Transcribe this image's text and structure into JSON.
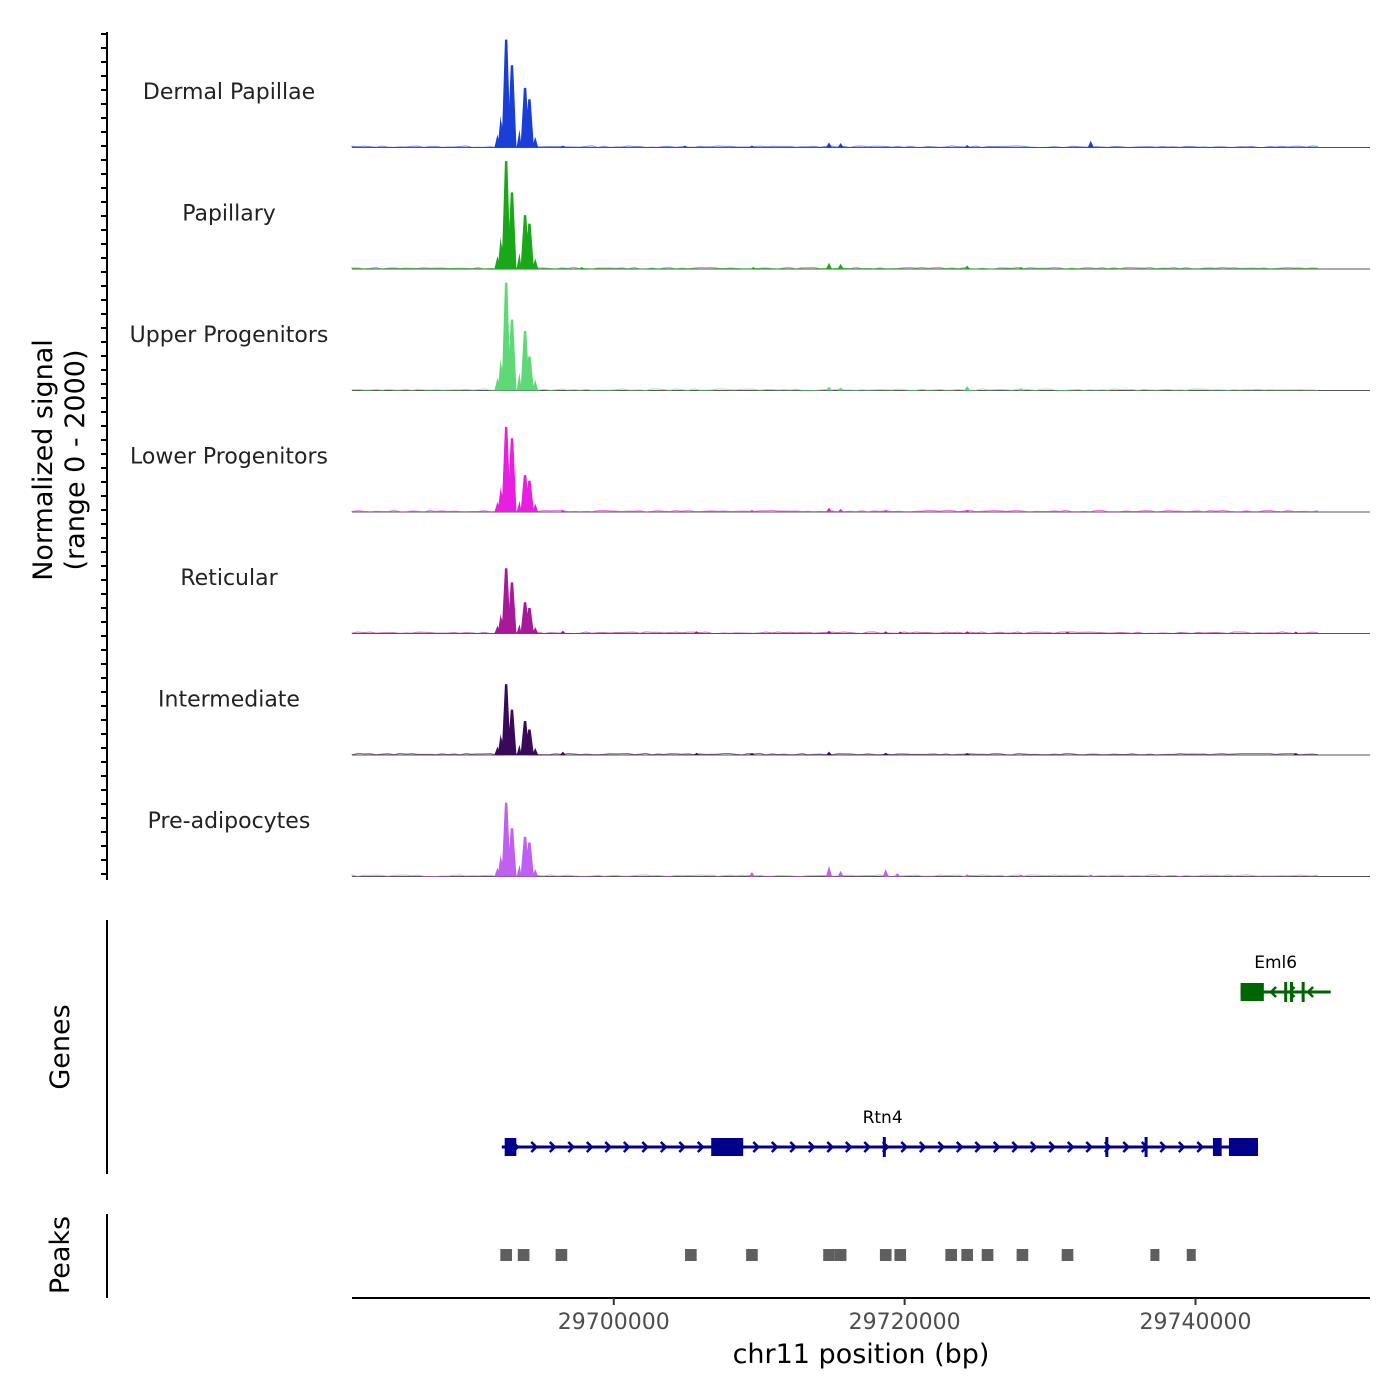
{
  "chart_data": {
    "type": "area",
    "title": "",
    "ylabel_line1": "Normalized signal",
    "ylabel_line2": "(range 0 - 2000)",
    "genes_label": "Genes",
    "peaks_label": "Peaks",
    "xlabel": "chr11 position (bp)",
    "chromosome": "chr11",
    "xlim": [
      29682000,
      29752000
    ],
    "ylim": [
      0,
      2000
    ],
    "x_ticks": [
      29700000,
      29720000,
      29740000
    ],
    "x_tick_labels": [
      "29700000",
      "29720000",
      "29740000"
    ],
    "tracks": [
      {
        "name": "Dermal Papillae",
        "color": "#1a3fd6",
        "main_peaks": [
          [
            29692600,
            1900
          ],
          [
            29693000,
            1450
          ],
          [
            29693900,
            1050
          ],
          [
            29694200,
            850
          ]
        ],
        "minor_peaks": [
          [
            29714800,
            90
          ],
          [
            29715600,
            80
          ],
          [
            29724300,
            45
          ],
          [
            29732800,
            120
          ],
          [
            29696500,
            18
          ],
          [
            29704900,
            18
          ],
          [
            29709500,
            18
          ]
        ]
      },
      {
        "name": "Papillary",
        "color": "#1aa81a",
        "main_peaks": [
          [
            29692600,
            1900
          ],
          [
            29693000,
            1350
          ],
          [
            29693900,
            950
          ],
          [
            29694200,
            800
          ]
        ],
        "minor_peaks": [
          [
            29714800,
            110
          ],
          [
            29715600,
            90
          ],
          [
            29724300,
            60
          ],
          [
            29709600,
            35
          ],
          [
            29728000,
            25
          ],
          [
            29697800,
            20
          ]
        ]
      },
      {
        "name": "Upper Progenitors",
        "color": "#5fd977",
        "main_peaks": [
          [
            29692600,
            1900
          ],
          [
            29693000,
            1250
          ],
          [
            29693900,
            1050
          ],
          [
            29694200,
            600
          ]
        ],
        "minor_peaks": [
          [
            29714800,
            70
          ],
          [
            29715600,
            55
          ],
          [
            29724300,
            80
          ],
          [
            29728000,
            20
          ]
        ]
      },
      {
        "name": "Lower Progenitors",
        "color": "#e81ee0",
        "main_peaks": [
          [
            29692600,
            1500
          ],
          [
            29693000,
            1300
          ],
          [
            29693900,
            650
          ],
          [
            29694200,
            550
          ]
        ],
        "minor_peaks": [
          [
            29714800,
            80
          ],
          [
            29715600,
            55
          ],
          [
            29709500,
            35
          ],
          [
            29724300,
            30
          ],
          [
            29718700,
            25
          ],
          [
            29696500,
            15
          ]
        ]
      },
      {
        "name": "Reticular",
        "color": "#a8199a",
        "main_peaks": [
          [
            29692600,
            1150
          ],
          [
            29693000,
            900
          ],
          [
            29693900,
            550
          ],
          [
            29694200,
            450
          ]
        ],
        "minor_peaks": [
          [
            29696500,
            50
          ],
          [
            29705700,
            40
          ],
          [
            29714800,
            50
          ],
          [
            29718700,
            40
          ],
          [
            29719700,
            35
          ],
          [
            29724300,
            40
          ],
          [
            29731200,
            30
          ],
          [
            29746900,
            25
          ]
        ]
      },
      {
        "name": "Intermediate",
        "color": "#3a0a5a",
        "main_peaks": [
          [
            29692600,
            1250
          ],
          [
            29693000,
            800
          ],
          [
            29693900,
            600
          ],
          [
            29694200,
            450
          ]
        ],
        "minor_peaks": [
          [
            29696500,
            60
          ],
          [
            29705700,
            40
          ],
          [
            29709500,
            30
          ],
          [
            29714800,
            60
          ],
          [
            29718700,
            40
          ],
          [
            29724300,
            30
          ],
          [
            29746900,
            25
          ]
        ]
      },
      {
        "name": "Pre-adipocytes",
        "color": "#c060f0",
        "main_peaks": [
          [
            29692600,
            1300
          ],
          [
            29693000,
            850
          ],
          [
            29693900,
            700
          ],
          [
            29694200,
            600
          ]
        ],
        "minor_peaks": [
          [
            29709500,
            80
          ],
          [
            29714800,
            190
          ],
          [
            29715600,
            100
          ],
          [
            29718700,
            130
          ],
          [
            29719500,
            60
          ],
          [
            29724300,
            40
          ],
          [
            29728000,
            30
          ],
          [
            29732800,
            30
          ]
        ]
      }
    ],
    "genes": [
      {
        "name": "Rtn4",
        "color": "#00008b",
        "strand": "+",
        "start": 29692300,
        "end": 29744300,
        "exons": [
          [
            29692500,
            29693300
          ],
          [
            29706700,
            29708900
          ],
          [
            29718500,
            29718700
          ],
          [
            29733800,
            29734000
          ],
          [
            29736500,
            29736700
          ],
          [
            29741200,
            29741800
          ],
          [
            29742300,
            29744300
          ]
        ]
      },
      {
        "name": "Eml6",
        "color": "#006400",
        "strand": "-",
        "start": 29743100,
        "end": 29749300,
        "exons": [
          [
            29743100,
            29744700
          ],
          [
            29746100,
            29746300
          ],
          [
            29746500,
            29746700
          ],
          [
            29747300,
            29747500
          ]
        ]
      }
    ],
    "peaks": [
      [
        29692200,
        29693000
      ],
      [
        29693400,
        29694200
      ],
      [
        29696000,
        29696800
      ],
      [
        29704900,
        29705700
      ],
      [
        29709100,
        29709900
      ],
      [
        29714400,
        29715200
      ],
      [
        29715200,
        29716000
      ],
      [
        29718300,
        29719100
      ],
      [
        29719300,
        29720100
      ],
      [
        29722800,
        29723600
      ],
      [
        29723900,
        29724700
      ],
      [
        29725300,
        29726100
      ],
      [
        29727700,
        29728500
      ],
      [
        29730800,
        29731600
      ],
      [
        29736900,
        29737500
      ],
      [
        29739400,
        29739900
      ]
    ]
  }
}
